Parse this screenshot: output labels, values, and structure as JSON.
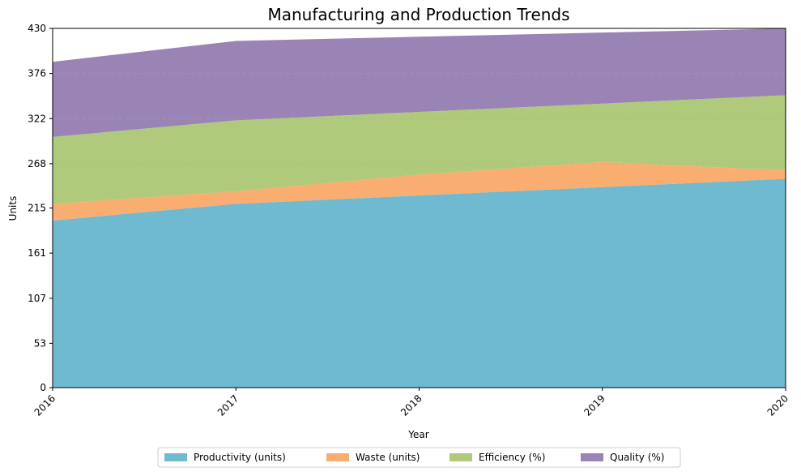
{
  "chart_data": {
    "type": "area",
    "stacked": true,
    "title": "Manufacturing and Production Trends",
    "xlabel": "Year",
    "ylabel": "Units",
    "x": [
      "2016",
      "2017",
      "2018",
      "2019",
      "2020"
    ],
    "ylim": [
      0,
      430
    ],
    "yticks": [
      0,
      53,
      107,
      161,
      215,
      268,
      322,
      376,
      430
    ],
    "grid": true,
    "legend_position": "bottom-center",
    "series": [
      {
        "name": "Productivity (units)",
        "color": "#5fb3cb",
        "values": [
          200,
          220,
          230,
          240,
          250
        ]
      },
      {
        "name": "Waste (units)",
        "color": "#f8a462",
        "values": [
          20,
          15,
          25,
          30,
          10
        ]
      },
      {
        "name": "Efficiency (%)",
        "color": "#a6c46c",
        "values": [
          80,
          85,
          75,
          70,
          90
        ]
      },
      {
        "name": "Quality (%)",
        "color": "#8e77ad",
        "values": [
          90,
          95,
          90,
          85,
          80
        ]
      }
    ]
  }
}
